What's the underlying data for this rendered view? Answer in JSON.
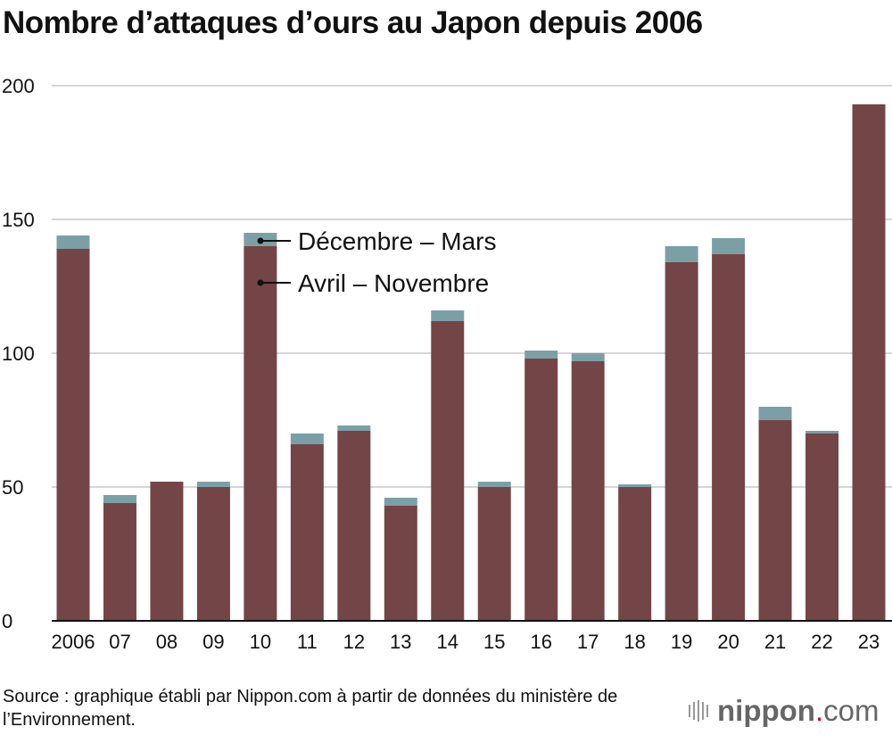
{
  "chart_data": {
    "type": "bar",
    "stacked": true,
    "title": "Nombre d’attaques d’ours au Japon depuis 2006",
    "categories": [
      "2006",
      "07",
      "08",
      "09",
      "10",
      "11",
      "12",
      "13",
      "14",
      "15",
      "16",
      "17",
      "18",
      "19",
      "20",
      "21",
      "22",
      "23"
    ],
    "series": [
      {
        "name": "Avril – Novembre",
        "color": "#744546",
        "values": [
          139,
          44,
          52,
          50,
          140,
          66,
          71,
          43,
          112,
          50,
          98,
          97,
          50,
          134,
          137,
          75,
          70,
          193
        ]
      },
      {
        "name": "Décembre – Mars",
        "color": "#7aa0a6",
        "values": [
          5,
          3,
          0,
          2,
          5,
          4,
          2,
          3,
          4,
          2,
          3,
          3,
          1,
          6,
          6,
          5,
          1,
          0
        ]
      }
    ],
    "ylim": [
      0,
      200
    ],
    "yticks": [
      "0",
      "50",
      "100",
      "150",
      "200"
    ],
    "grid": true,
    "legend": "top-left inside",
    "xlabel": "",
    "ylabel": ""
  },
  "source": "Source : graphique établi par Nippon.com à partir de données du ministère de l’Environnement.",
  "logo": {
    "name": "nippon",
    "dot": ".",
    "suffix": "com"
  }
}
